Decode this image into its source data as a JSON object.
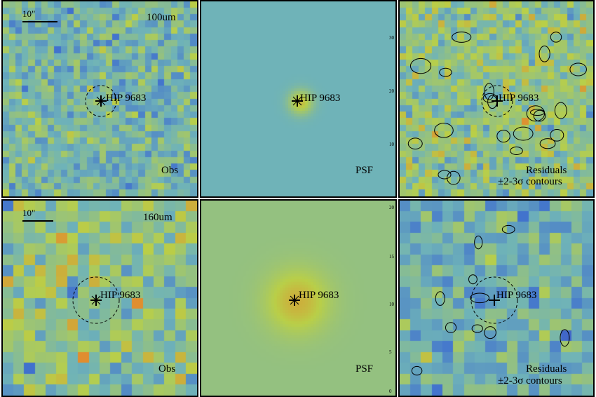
{
  "target_name": "HIP 9683",
  "rows": [
    {
      "band": "100um",
      "scale_label": "10\"",
      "obs_label": "Obs",
      "psf_label": "PSF",
      "residual_label_1": "Residuals",
      "residual_label_2": "±2-3σ contours",
      "psf_axis_ticks": [
        "30",
        "20",
        "10"
      ]
    },
    {
      "band": "160um",
      "scale_label": "10\"",
      "obs_label": "Obs",
      "psf_label": "PSF",
      "residual_label_1": "Residuals",
      "residual_label_2": "±2-3σ contours",
      "psf_axis_ticks": [
        "20",
        "15",
        "10",
        "5",
        "0"
      ]
    }
  ],
  "colors": {
    "cold": "#5a1a8a",
    "cool": "#3f6fcf",
    "mid": "#6fb3b8",
    "warm": "#b9cf48",
    "hot": "#e8802a",
    "peak": "#e23a2a"
  }
}
